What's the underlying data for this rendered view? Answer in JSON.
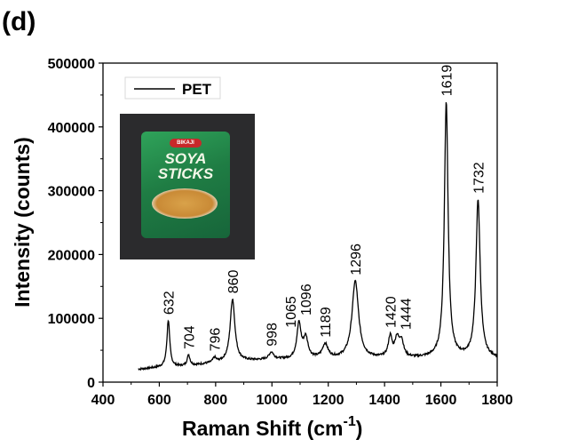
{
  "panel_label": "(d)",
  "inset": {
    "description": "photo of snack packet",
    "brand": "BIKAJI",
    "title_line1": "SOYA",
    "title_line2": "STICKS"
  },
  "chart_data": {
    "type": "line",
    "title": "",
    "xlabel": "Raman Shift (cm",
    "xlabel_superscript": "-1",
    "xlabel_suffix": ")",
    "ylabel": "Intensity (counts)",
    "xlim": [
      400,
      1800
    ],
    "ylim": [
      0,
      500000
    ],
    "xticks": [
      400,
      600,
      800,
      1000,
      1200,
      1400,
      1600,
      1800
    ],
    "xtick_labels": [
      "400",
      "600",
      "800",
      "1000",
      "1200",
      "1400",
      "1600",
      "1800"
    ],
    "yticks": [
      0,
      100000,
      200000,
      300000,
      400000,
      500000
    ],
    "ytick_labels": [
      "0",
      "100000",
      "200000",
      "300000",
      "400000",
      "500000"
    ],
    "grid": false,
    "legend": {
      "entries": [
        "PET"
      ],
      "position": "top-left"
    },
    "series": [
      {
        "name": "PET",
        "color": "#000000",
        "baseline": [
          [
            525,
            20000
          ],
          [
            600,
            23000
          ],
          [
            700,
            25000
          ],
          [
            800,
            30000
          ],
          [
            900,
            33000
          ],
          [
            1000,
            35000
          ],
          [
            1100,
            36000
          ],
          [
            1200,
            36000
          ],
          [
            1300,
            36000
          ],
          [
            1400,
            37000
          ],
          [
            1500,
            37000
          ],
          [
            1600,
            38000
          ],
          [
            1700,
            38000
          ],
          [
            1800,
            37000
          ]
        ],
        "peaks": [
          {
            "x": 632,
            "y": 97000,
            "width": 6
          },
          {
            "x": 704,
            "y": 42000,
            "width": 6
          },
          {
            "x": 796,
            "y": 37000,
            "width": 7
          },
          {
            "x": 860,
            "y": 130000,
            "width": 10
          },
          {
            "x": 998,
            "y": 46000,
            "width": 10
          },
          {
            "x": 1065,
            "y": 35000,
            "width": 8
          },
          {
            "x": 1096,
            "y": 90000,
            "width": 9
          },
          {
            "x": 1120,
            "y": 67000,
            "width": 10
          },
          {
            "x": 1189,
            "y": 58000,
            "width": 12
          },
          {
            "x": 1296,
            "y": 158000,
            "width": 14
          },
          {
            "x": 1420,
            "y": 69000,
            "width": 8
          },
          {
            "x": 1444,
            "y": 65000,
            "width": 9
          },
          {
            "x": 1460,
            "y": 62000,
            "width": 9
          },
          {
            "x": 1619,
            "y": 438000,
            "width": 8
          },
          {
            "x": 1732,
            "y": 285000,
            "width": 9
          }
        ]
      }
    ],
    "annotations": [
      {
        "text": "632",
        "x": 632,
        "y": 97000
      },
      {
        "text": "704",
        "x": 704,
        "y": 42000
      },
      {
        "text": "796",
        "x": 796,
        "y": 37000
      },
      {
        "text": "860",
        "x": 860,
        "y": 130000
      },
      {
        "text": "998",
        "x": 998,
        "y": 46000
      },
      {
        "text": "1065",
        "x": 1065,
        "y": 48000
      },
      {
        "text": "1096",
        "x": 1096,
        "y": 90000
      },
      {
        "text": "1189",
        "x": 1189,
        "y": 58000
      },
      {
        "text": "1296",
        "x": 1296,
        "y": 158000
      },
      {
        "text": "1420",
        "x": 1420,
        "y": 69000
      },
      {
        "text": "1444",
        "x": 1444,
        "y": 69000
      },
      {
        "text": "1619",
        "x": 1619,
        "y": 438000
      },
      {
        "text": "1732",
        "x": 1732,
        "y": 285000
      }
    ]
  }
}
